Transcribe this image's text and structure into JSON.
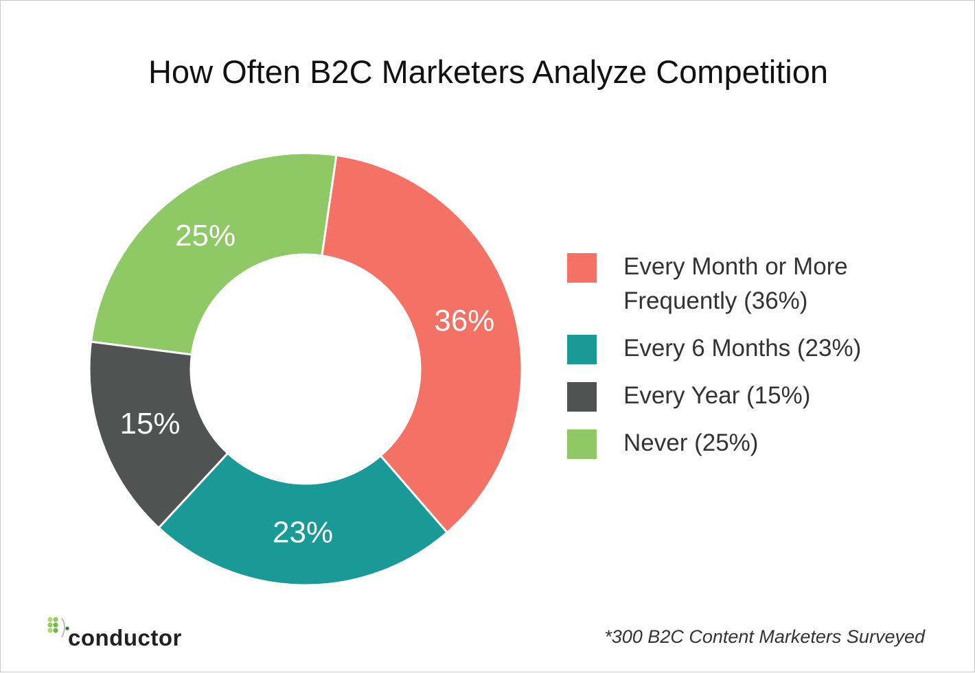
{
  "chart_data": {
    "type": "pie",
    "title": "How Often B2C Marketers Analyze Competition",
    "categories": [
      "Every Month or More Frequently (36%)",
      "Every 6 Months (23%)",
      "Every Year (15%)",
      "Never (25%)"
    ],
    "values": [
      36,
      23,
      15,
      25
    ],
    "value_labels": [
      "36%",
      "23%",
      "15%",
      "25%"
    ],
    "colors": [
      "#f37265",
      "#1a9a96",
      "#515352",
      "#8fc965"
    ],
    "donut": true,
    "legend": "right",
    "footnote": "*300 B2C Content Marketers Surveyed",
    "logo": "conductor"
  }
}
